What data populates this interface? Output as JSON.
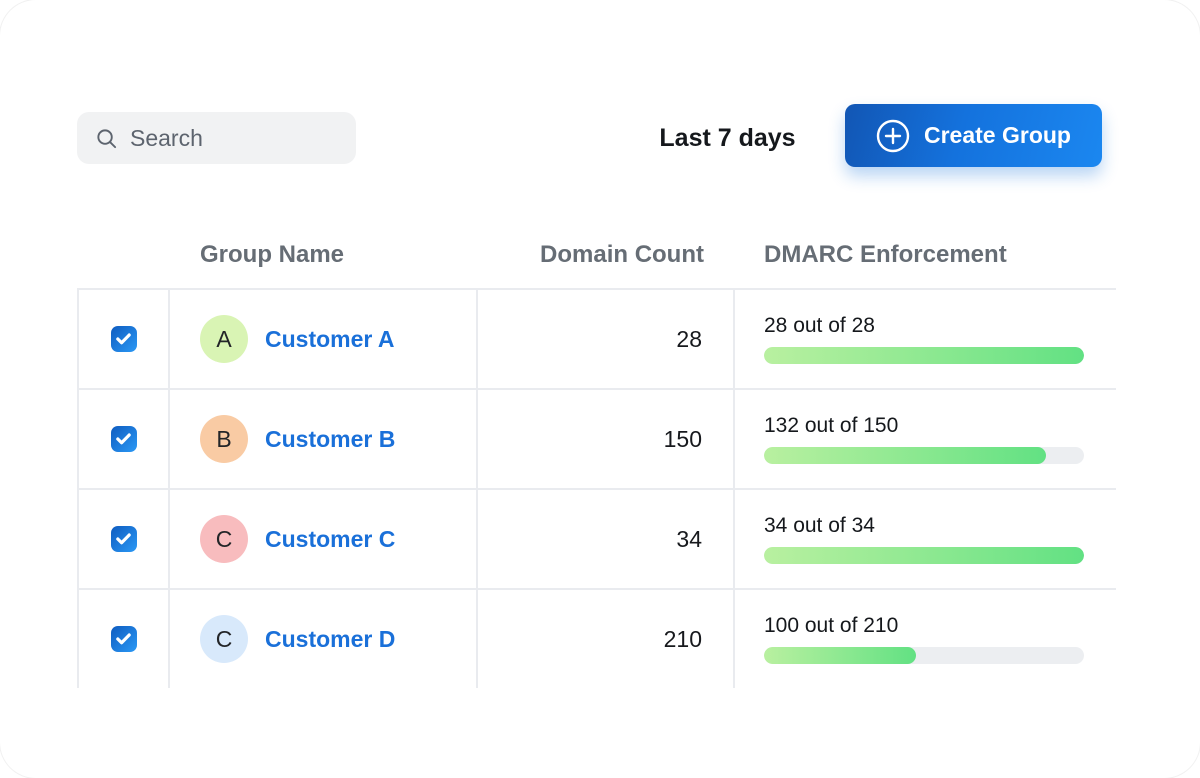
{
  "toolbar": {
    "search_placeholder": "Search",
    "date_range_label": "Last 7 days",
    "create_group_label": "Create Group"
  },
  "table": {
    "columns": [
      "Group Name",
      "Domain Count",
      "DMARC Enforcement"
    ],
    "rows": [
      {
        "checked": true,
        "avatar_letter": "A",
        "avatar_color": "#d9f4b4",
        "name": "Customer A",
        "domain_count": "28",
        "enforcement_label": "28 out of 28",
        "enforced": 28,
        "total": 28
      },
      {
        "checked": true,
        "avatar_letter": "B",
        "avatar_color": "#f9cba4",
        "name": "Customer B",
        "domain_count": "150",
        "enforcement_label": "132 out of 150",
        "enforced": 132,
        "total": 150
      },
      {
        "checked": true,
        "avatar_letter": "C",
        "avatar_color": "#f8bcbe",
        "name": "Customer C",
        "domain_count": "34",
        "enforcement_label": "34 out of 34",
        "enforced": 34,
        "total": 34
      },
      {
        "checked": true,
        "avatar_letter": "C",
        "avatar_color": "#d8e9fb",
        "name": "Customer D",
        "domain_count": "210",
        "enforcement_label": "100 out of 210",
        "enforced": 100,
        "total": 210
      }
    ]
  },
  "colors": {
    "accent_blue": "#1472dd",
    "link_blue": "#1a70d9",
    "progress_green_start": "#b9f0a0",
    "progress_green_end": "#62e183",
    "track_gray": "#eceef1",
    "divider_gray": "#e9ebef",
    "header_gray": "#666d75"
  }
}
